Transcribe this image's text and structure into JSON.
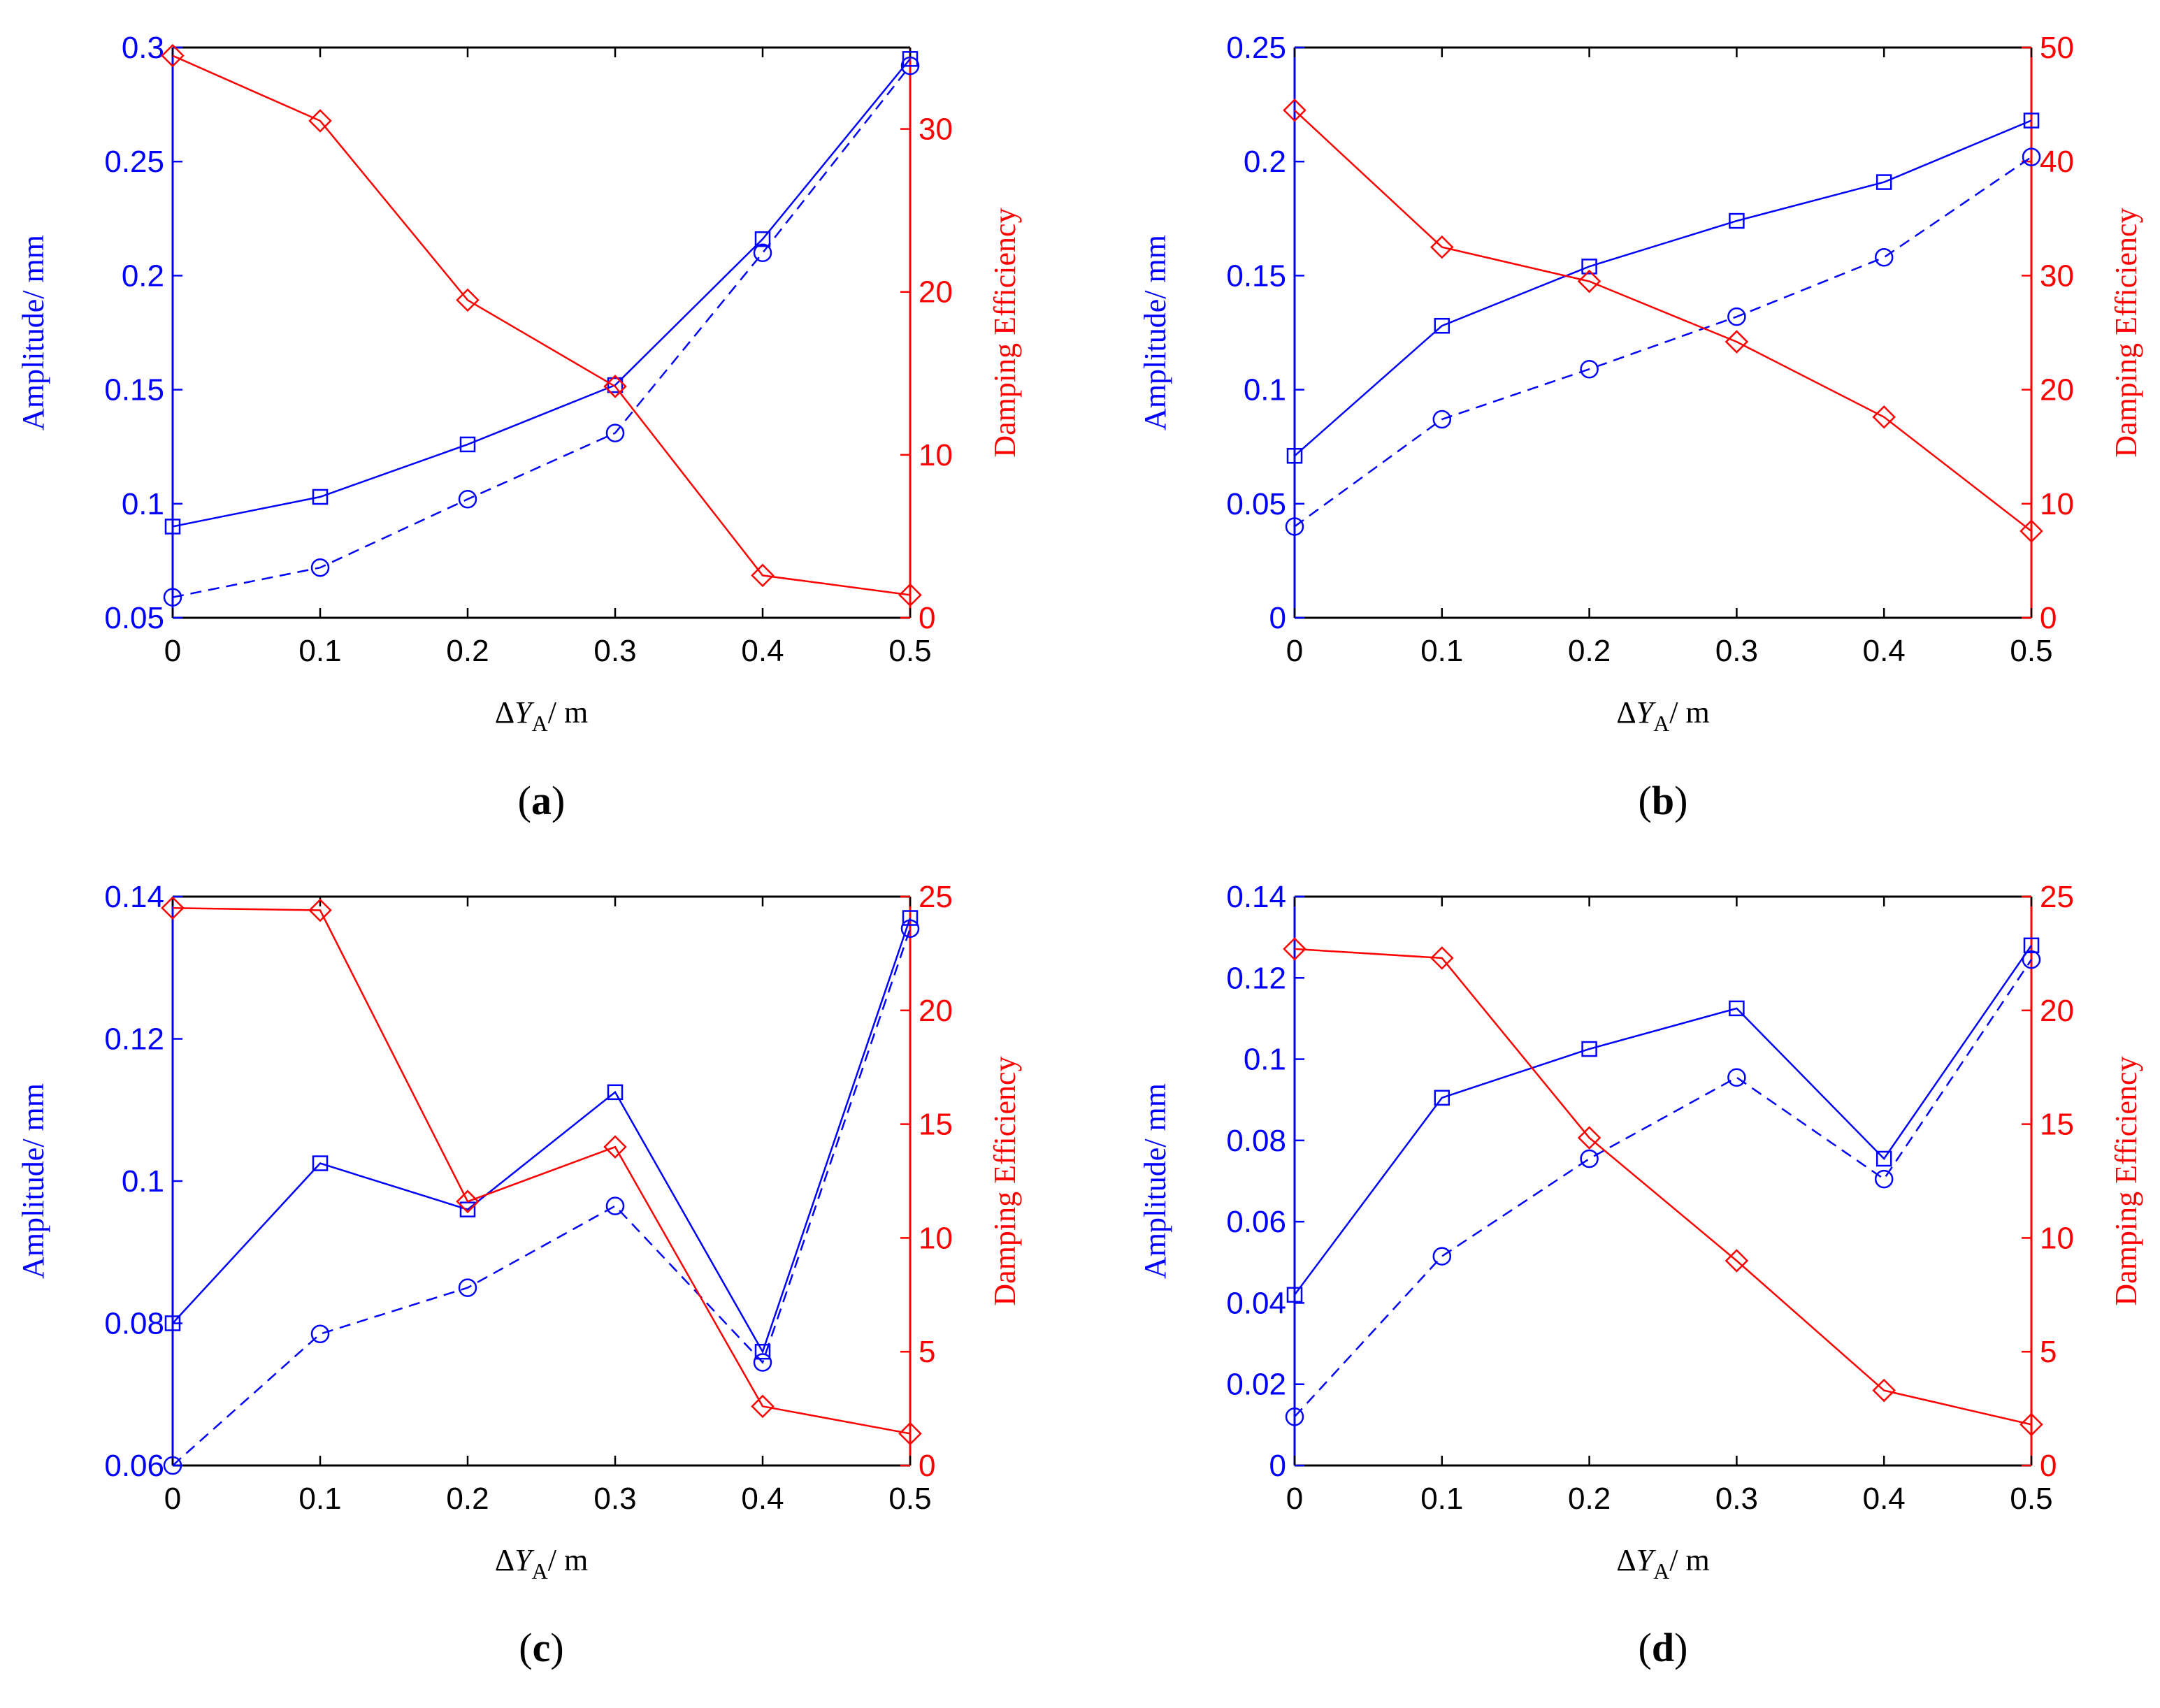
{
  "figure": {
    "colors": {
      "left_axis": "#0000ff",
      "right_axis": "#ff0000",
      "frame": "#000000"
    }
  },
  "chart_data": [
    {
      "type": "line",
      "caption_letter": "a",
      "xlabel_delta": "Δ",
      "xlabel_var": "Y",
      "xlabel_sub": "A",
      "xlabel_unit": "/ m",
      "ylabel_left": "Amplitude/ mm",
      "ylabel_right": "Damping Efficiency",
      "x": [
        0,
        0.1,
        0.2,
        0.3,
        0.4,
        0.5
      ],
      "xlim": [
        0,
        0.5
      ],
      "xticks": [
        0,
        0.1,
        0.2,
        0.3,
        0.4,
        0.5
      ],
      "xtick_labels": [
        "0",
        "0.1",
        "0.2",
        "0.3",
        "0.4",
        "0.5"
      ],
      "ylim_left": [
        0.05,
        0.3
      ],
      "yticks_left": [
        0.05,
        0.1,
        0.15,
        0.2,
        0.25,
        0.3
      ],
      "ytick_labels_left": [
        "0.05",
        "0.1",
        "0.15",
        "0.2",
        "0.25",
        "0.3"
      ],
      "ylim_right": [
        0,
        35
      ],
      "yticks_right": [
        0,
        10,
        20,
        30
      ],
      "ytick_labels_right": [
        "0",
        "10",
        "20",
        "30"
      ],
      "series": [
        {
          "name": "amplitude-square",
          "axis": "left",
          "color": "#0000ff",
          "marker": "square",
          "dash": "solid",
          "values": [
            0.09,
            0.103,
            0.126,
            0.152,
            0.216,
            0.295
          ]
        },
        {
          "name": "amplitude-circle",
          "axis": "left",
          "color": "#0000ff",
          "marker": "circle",
          "dash": "dashed",
          "values": [
            0.059,
            0.072,
            0.102,
            0.131,
            0.21,
            0.292
          ]
        },
        {
          "name": "damping-efficiency",
          "axis": "right",
          "color": "#ff0000",
          "marker": "diamond",
          "dash": "solid",
          "values": [
            34.5,
            30.5,
            19.5,
            14.2,
            2.6,
            1.4
          ]
        }
      ]
    },
    {
      "type": "line",
      "caption_letter": "b",
      "xlabel_delta": "Δ",
      "xlabel_var": "Y",
      "xlabel_sub": "A",
      "xlabel_unit": "/ m",
      "ylabel_left": "Amplitude/ mm",
      "ylabel_right": "Damping Efficiency",
      "x": [
        0,
        0.1,
        0.2,
        0.3,
        0.4,
        0.5
      ],
      "xlim": [
        0,
        0.5
      ],
      "xticks": [
        0,
        0.1,
        0.2,
        0.3,
        0.4,
        0.5
      ],
      "xtick_labels": [
        "0",
        "0.1",
        "0.2",
        "0.3",
        "0.4",
        "0.5"
      ],
      "ylim_left": [
        0,
        0.25
      ],
      "yticks_left": [
        0,
        0.05,
        0.1,
        0.15,
        0.2,
        0.25
      ],
      "ytick_labels_left": [
        "0",
        "0.05",
        "0.1",
        "0.15",
        "0.2",
        "0.25"
      ],
      "ylim_right": [
        0,
        50
      ],
      "yticks_right": [
        0,
        10,
        20,
        30,
        40,
        50
      ],
      "ytick_labels_right": [
        "0",
        "10",
        "20",
        "30",
        "40",
        "50"
      ],
      "series": [
        {
          "name": "amplitude-square",
          "axis": "left",
          "color": "#0000ff",
          "marker": "square",
          "dash": "solid",
          "values": [
            0.071,
            0.128,
            0.154,
            0.174,
            0.191,
            0.218
          ]
        },
        {
          "name": "amplitude-circle",
          "axis": "left",
          "color": "#0000ff",
          "marker": "circle",
          "dash": "dashed",
          "values": [
            0.04,
            0.087,
            0.109,
            0.132,
            0.158,
            0.202
          ]
        },
        {
          "name": "damping-efficiency",
          "axis": "right",
          "color": "#ff0000",
          "marker": "diamond",
          "dash": "solid",
          "values": [
            44.5,
            32.5,
            29.5,
            24.2,
            17.6,
            7.6
          ]
        }
      ]
    },
    {
      "type": "line",
      "caption_letter": "c",
      "xlabel_delta": "Δ",
      "xlabel_var": "Y",
      "xlabel_sub": "A",
      "xlabel_unit": "/ m",
      "ylabel_left": "Amplitude/ mm",
      "ylabel_right": "Damping Efficiency",
      "x": [
        0,
        0.1,
        0.2,
        0.3,
        0.4,
        0.5
      ],
      "xlim": [
        0,
        0.5
      ],
      "xticks": [
        0,
        0.1,
        0.2,
        0.3,
        0.4,
        0.5
      ],
      "xtick_labels": [
        "0",
        "0.1",
        "0.2",
        "0.3",
        "0.4",
        "0.5"
      ],
      "ylim_left": [
        0.06,
        0.14
      ],
      "yticks_left": [
        0.06,
        0.08,
        0.1,
        0.12,
        0.14
      ],
      "ytick_labels_left": [
        "0.06",
        "0.08",
        "0.1",
        "0.12",
        "0.14"
      ],
      "ylim_right": [
        0,
        25
      ],
      "yticks_right": [
        0,
        5,
        10,
        15,
        20,
        25
      ],
      "ytick_labels_right": [
        "0",
        "5",
        "10",
        "15",
        "20",
        "25"
      ],
      "series": [
        {
          "name": "amplitude-square",
          "axis": "left",
          "color": "#0000ff",
          "marker": "square",
          "dash": "solid",
          "values": [
            0.08,
            0.1025,
            0.096,
            0.1125,
            0.076,
            0.137
          ]
        },
        {
          "name": "amplitude-circle",
          "axis": "left",
          "color": "#0000ff",
          "marker": "circle",
          "dash": "dashed",
          "values": [
            0.06,
            0.0785,
            0.085,
            0.0965,
            0.0745,
            0.1355
          ]
        },
        {
          "name": "damping-efficiency",
          "axis": "right",
          "color": "#ff0000",
          "marker": "diamond",
          "dash": "solid",
          "values": [
            24.5,
            24.4,
            11.6,
            14.0,
            2.6,
            1.4
          ]
        }
      ]
    },
    {
      "type": "line",
      "caption_letter": "d",
      "xlabel_delta": "Δ",
      "xlabel_var": "Y",
      "xlabel_sub": "A",
      "xlabel_unit": "/ m",
      "ylabel_left": "Amplitude/ mm",
      "ylabel_right": "Damping Efficiency",
      "x": [
        0,
        0.1,
        0.2,
        0.3,
        0.4,
        0.5
      ],
      "xlim": [
        0,
        0.5
      ],
      "xticks": [
        0,
        0.1,
        0.2,
        0.3,
        0.4,
        0.5
      ],
      "xtick_labels": [
        "0",
        "0.1",
        "0.2",
        "0.3",
        "0.4",
        "0.5"
      ],
      "ylim_left": [
        0,
        0.14
      ],
      "yticks_left": [
        0,
        0.02,
        0.04,
        0.06,
        0.08,
        0.1,
        0.12,
        0.14
      ],
      "ytick_labels_left": [
        "0",
        "0.02",
        "0.04",
        "0.06",
        "0.08",
        "0.1",
        "0.12",
        "0.14"
      ],
      "ylim_right": [
        0,
        25
      ],
      "yticks_right": [
        0,
        5,
        10,
        15,
        20,
        25
      ],
      "ytick_labels_right": [
        "0",
        "5",
        "10",
        "15",
        "20",
        "25"
      ],
      "series": [
        {
          "name": "amplitude-square",
          "axis": "left",
          "color": "#0000ff",
          "marker": "square",
          "dash": "solid",
          "values": [
            0.042,
            0.0905,
            0.1025,
            0.1125,
            0.0755,
            0.128
          ]
        },
        {
          "name": "amplitude-circle",
          "axis": "left",
          "color": "#0000ff",
          "marker": "circle",
          "dash": "dashed",
          "values": [
            0.012,
            0.0515,
            0.0755,
            0.0955,
            0.0705,
            0.1245
          ]
        },
        {
          "name": "damping-efficiency",
          "axis": "right",
          "color": "#ff0000",
          "marker": "diamond",
          "dash": "solid",
          "values": [
            22.7,
            22.3,
            14.4,
            9.0,
            3.3,
            1.8
          ]
        }
      ]
    }
  ]
}
